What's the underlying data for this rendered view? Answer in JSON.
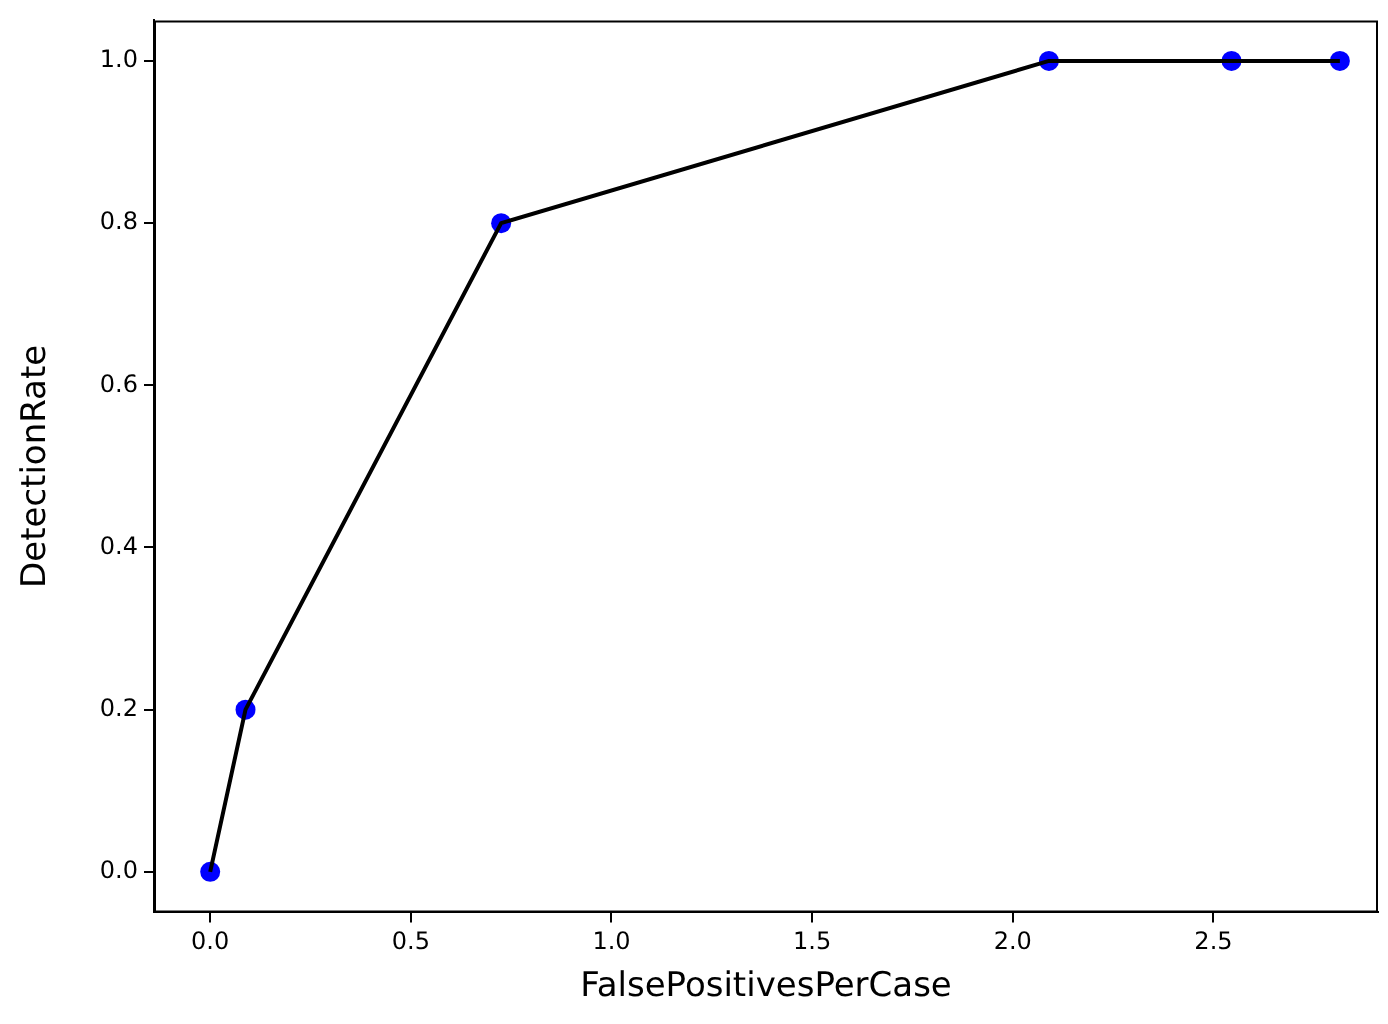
{
  "chart_data": {
    "type": "line",
    "xlabel": "FalsePositivesPerCase",
    "ylabel": "DetectionRate",
    "x": [
      0,
      0.088,
      0.725,
      2.09,
      2.545,
      2.815
    ],
    "series": [
      {
        "color": "#000000",
        "marker": "none",
        "values": [
          0,
          0.2,
          0.8,
          1.0,
          1.0,
          1.0
        ]
      },
      {
        "type": "scatter",
        "color": "#0000ff",
        "marker": "circle",
        "values": [
          0,
          0.2,
          0.8,
          1.0,
          1.0,
          1.0
        ]
      }
    ],
    "xlim": [
      -0.14,
      2.91
    ],
    "ylim": [
      -0.05,
      1.05
    ],
    "xticks": [
      {
        "value": 0,
        "label": "0.0"
      },
      {
        "value": 0.5,
        "label": "0.5"
      },
      {
        "value": 1,
        "label": "1.0"
      },
      {
        "value": 1.5,
        "label": "1.5"
      },
      {
        "value": 2,
        "label": "2.0"
      },
      {
        "value": 2.5,
        "label": "2.5"
      }
    ],
    "yticks": [
      {
        "value": 0,
        "label": "0.0"
      },
      {
        "value": 0.2,
        "label": "0.2"
      },
      {
        "value": 0.4,
        "label": "0.4"
      },
      {
        "value": 0.6,
        "label": "0.6"
      },
      {
        "value": 0.8,
        "label": "0.8"
      },
      {
        "value": 1,
        "label": "1.0"
      }
    ],
    "grid": false,
    "legend": false
  }
}
